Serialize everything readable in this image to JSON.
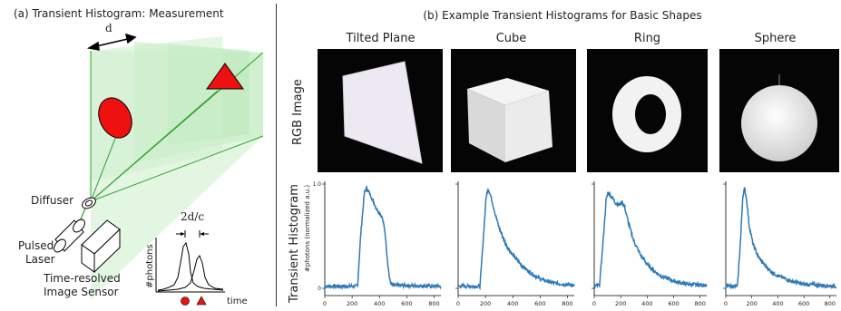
{
  "panel_a": {
    "caption": "(a) Transient Histogram: Measurement",
    "labels": {
      "d": "d",
      "diffuser": "Diffuser",
      "pulsed_laser_1": "Pulsed",
      "pulsed_laser_2": "Laser",
      "sensor_1": "Time-resolved",
      "sensor_2": "Image Sensor",
      "two_d_over_c": "2d/c",
      "photons": "#photons",
      "time": "time"
    }
  },
  "panel_b": {
    "caption": "(b) Example Transient Histograms for Basic Shapes",
    "row_label_rgb": "RGB Image",
    "row_label_hist": "Transient Histogram",
    "y_axis_label": "#photons (normalized a.u.)",
    "columns": [
      {
        "title": "Tilted Plane"
      },
      {
        "title": "Cube"
      },
      {
        "title": "Ring"
      },
      {
        "title": "Sphere"
      }
    ],
    "first_plot_ytick_labels": [
      "1.0",
      "0"
    ],
    "xtick_labels": [
      "0",
      "200",
      "400",
      "600",
      "800"
    ]
  },
  "chart_data": [
    {
      "type": "line",
      "title": "Tilted Plane",
      "xlim": [
        0,
        850
      ],
      "ylim": [
        0,
        1.0
      ],
      "series": [
        {
          "x": [
            0,
            240,
            262,
            290,
            305,
            320,
            340,
            360,
            380,
            400,
            420,
            440,
            460,
            475,
            490,
            850
          ],
          "values": [
            0.02,
            0.02,
            0.5,
            0.92,
            0.96,
            0.93,
            0.88,
            0.82,
            0.76,
            0.73,
            0.68,
            0.55,
            0.25,
            0.08,
            0.03,
            0.02
          ]
        }
      ]
    },
    {
      "type": "line",
      "title": "Cube",
      "xlim": [
        0,
        850
      ],
      "ylim": [
        0,
        1.0
      ],
      "series": [
        {
          "x": [
            0,
            160,
            185,
            205,
            220,
            240,
            270,
            300,
            350,
            400,
            450,
            500,
            550,
            600,
            700,
            850
          ],
          "values": [
            0.02,
            0.02,
            0.5,
            0.88,
            0.96,
            0.88,
            0.72,
            0.58,
            0.42,
            0.32,
            0.24,
            0.18,
            0.13,
            0.09,
            0.05,
            0.03
          ]
        }
      ]
    },
    {
      "type": "line",
      "title": "Ring",
      "xlim": [
        0,
        850
      ],
      "ylim": [
        0,
        1.0
      ],
      "series": [
        {
          "x": [
            0,
            40,
            70,
            90,
            105,
            130,
            160,
            190,
            210,
            230,
            260,
            300,
            350,
            400,
            450,
            500,
            600,
            700,
            850
          ],
          "values": [
            0.02,
            0.03,
            0.5,
            0.85,
            0.92,
            0.88,
            0.82,
            0.8,
            0.83,
            0.78,
            0.62,
            0.45,
            0.32,
            0.23,
            0.17,
            0.12,
            0.07,
            0.04,
            0.03
          ]
        }
      ]
    },
    {
      "type": "line",
      "title": "Sphere",
      "xlim": [
        0,
        850
      ],
      "ylim": [
        0,
        1.0
      ],
      "series": [
        {
          "x": [
            0,
            90,
            115,
            130,
            145,
            160,
            180,
            210,
            250,
            300,
            350,
            400,
            500,
            600,
            850
          ],
          "values": [
            0.02,
            0.02,
            0.5,
            0.88,
            0.96,
            0.85,
            0.6,
            0.42,
            0.3,
            0.22,
            0.16,
            0.12,
            0.07,
            0.04,
            0.02
          ]
        }
      ]
    }
  ]
}
